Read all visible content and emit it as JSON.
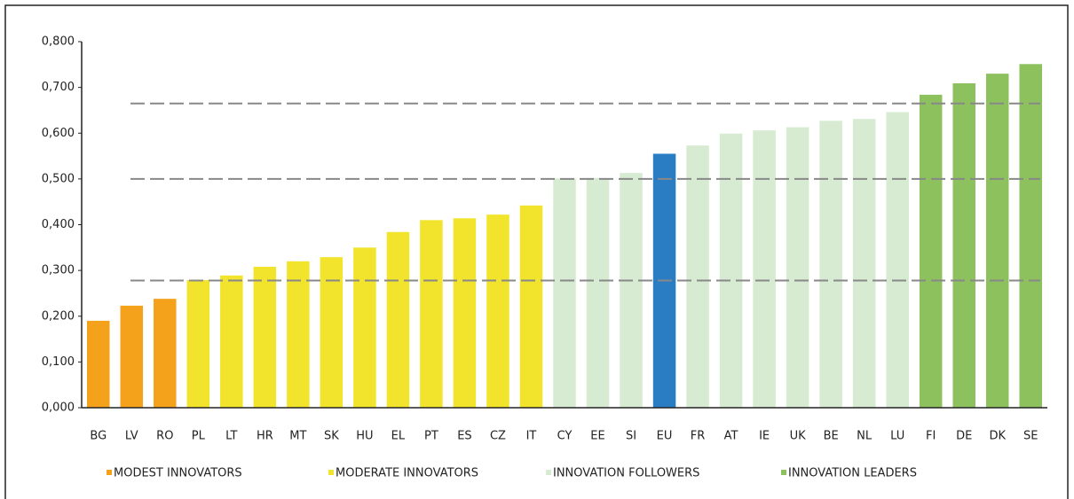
{
  "chart_data": {
    "type": "bar",
    "categories": [
      "BG",
      "LV",
      "RO",
      "PL",
      "LT",
      "HR",
      "MT",
      "SK",
      "HU",
      "EL",
      "PT",
      "ES",
      "CZ",
      "IT",
      "CY",
      "EE",
      "SI",
      "EU",
      "FR",
      "AT",
      "IE",
      "UK",
      "BE",
      "NL",
      "LU",
      "FI",
      "DE",
      "DK",
      "SE"
    ],
    "values": [
      0.19,
      0.223,
      0.238,
      0.279,
      0.289,
      0.308,
      0.32,
      0.329,
      0.35,
      0.384,
      0.41,
      0.414,
      0.422,
      0.442,
      0.501,
      0.502,
      0.513,
      0.555,
      0.573,
      0.599,
      0.606,
      0.613,
      0.627,
      0.631,
      0.646,
      0.684,
      0.709,
      0.73,
      0.751
    ],
    "bar_colors": [
      "#f4a21c",
      "#f4a21c",
      "#f4a21c",
      "#f2e42c",
      "#f2e42c",
      "#f2e42c",
      "#f2e42c",
      "#f2e42c",
      "#f2e42c",
      "#f2e42c",
      "#f2e42c",
      "#f2e42c",
      "#f2e42c",
      "#f2e42c",
      "#d6ebd1",
      "#d6ebd1",
      "#d6ebd1",
      "#2a7cc3",
      "#d6ebd1",
      "#d6ebd1",
      "#d6ebd1",
      "#d6ebd1",
      "#d6ebd1",
      "#d6ebd1",
      "#d6ebd1",
      "#8cc15e",
      "#8cc15e",
      "#8cc15e",
      "#8cc15e"
    ],
    "legend": [
      {
        "name": "MODEST INNOVATORS",
        "color": "#f4a21c"
      },
      {
        "name": "MODERATE INNOVATORS",
        "color": "#f2e42c"
      },
      {
        "name": "INNOVATION FOLLOWERS",
        "color": "#d6ebd1"
      },
      {
        "name": "INNOVATION LEADERS",
        "color": "#8cc15e"
      }
    ],
    "reference_lines": [
      0.665,
      0.5,
      0.278
    ],
    "ylim": [
      0,
      0.8
    ],
    "yticks": [
      {
        "value": 0,
        "label": "0,000"
      },
      {
        "value": 0.1,
        "label": "0,100"
      },
      {
        "value": 0.2,
        "label": "0,200"
      },
      {
        "value": 0.3,
        "label": "0,300"
      },
      {
        "value": 0.4,
        "label": "0,400"
      },
      {
        "value": 0.5,
        "label": "0,500"
      },
      {
        "value": 0.6,
        "label": "0,600"
      },
      {
        "value": 0.7,
        "label": "0,700"
      },
      {
        "value": 0.8,
        "label": "0,800"
      }
    ]
  }
}
